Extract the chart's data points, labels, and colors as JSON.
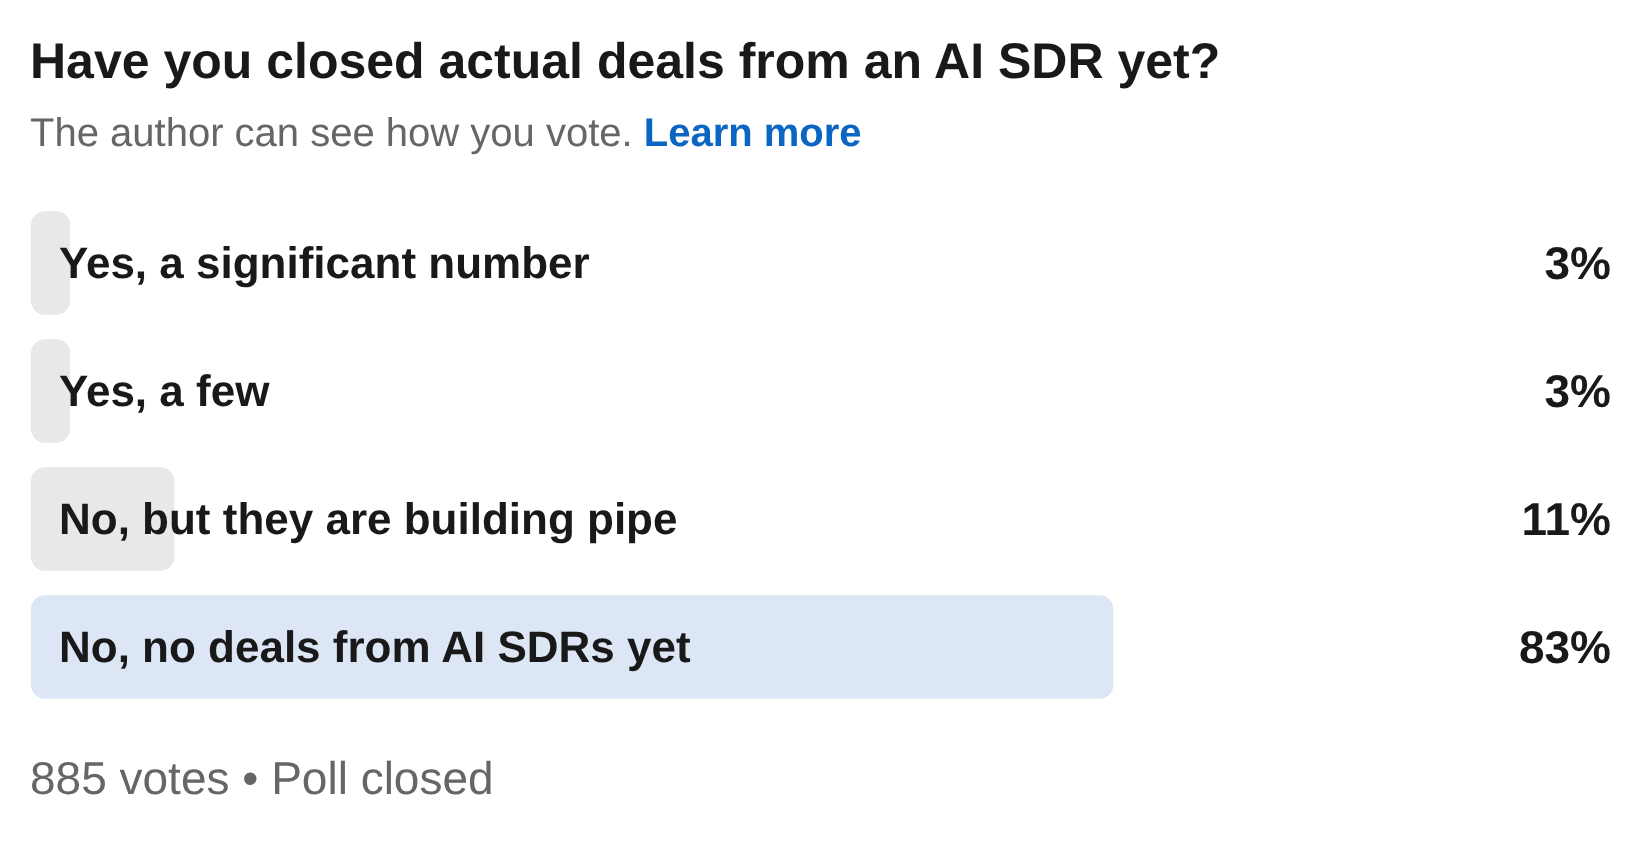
{
  "chart_data": {
    "type": "bar",
    "orientation": "horizontal",
    "title": "Have you closed actual deals from an AI SDR yet?",
    "subtitle": "The author can see how you vote.",
    "categories": [
      "Yes, a significant number",
      "Yes, a few",
      "No, but they are building pipe",
      "No, no deals from AI SDRs yet"
    ],
    "values": [
      3,
      3,
      11,
      83
    ],
    "colors": [
      "#e8e8e8",
      "#e8e8e8",
      "#e8e8e8",
      "#dce6f5"
    ],
    "value_labels": [
      "3%",
      "3%",
      "11%",
      "83%"
    ],
    "annotations": [
      "Learn more",
      "885 votes • Poll closed"
    ],
    "tick_labels": "y"
  }
}
